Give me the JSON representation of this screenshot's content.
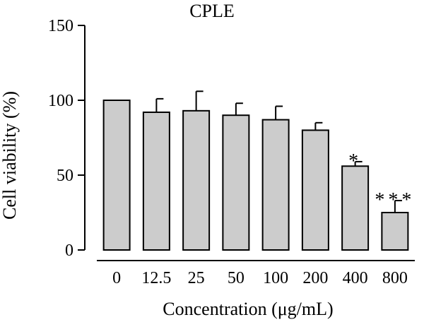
{
  "chart_data": {
    "type": "bar",
    "title": "CPLE",
    "xlabel": "Concentration (μg/mL)",
    "ylabel": "Cell viability (%)",
    "categories": [
      "0",
      "12.5",
      "25",
      "50",
      "100",
      "200",
      "400",
      "800"
    ],
    "values": [
      100,
      92,
      93,
      90,
      87,
      80,
      56,
      25
    ],
    "error_up": [
      0,
      9,
      13,
      8,
      9,
      5,
      3,
      8
    ],
    "significance": [
      "",
      "",
      "",
      "",
      "",
      "",
      "*",
      "***"
    ],
    "ylim": [
      0,
      150
    ],
    "yticks": [
      "0",
      "50",
      "100",
      "150"
    ],
    "grid": false,
    "bar_color": "#cccccc",
    "edge_color": "#000000"
  }
}
